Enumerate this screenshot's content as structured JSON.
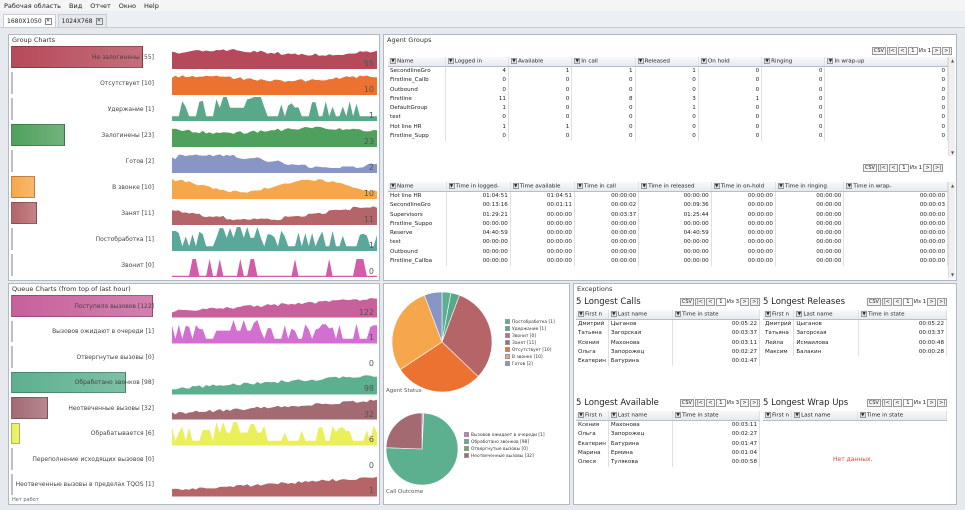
{
  "menu": [
    "Рабочая область",
    "Вид",
    "Отчет",
    "Окно",
    "Help"
  ],
  "tabs": [
    {
      "label": "1680X1050"
    },
    {
      "label": "1024X768"
    }
  ],
  "group_charts": {
    "title": "Group Charts",
    "rows": [
      {
        "label": "Не залогинены [55]",
        "value": "55",
        "color": "#b64a5a",
        "level": 0.93,
        "wave": "plateau"
      },
      {
        "label": "Отсутствует [10]",
        "value": "10",
        "color": "#ec7232",
        "level": 0.0,
        "wave": "plateau"
      },
      {
        "label": "Удержание [1]",
        "value": "1",
        "color": "#5aa88a",
        "level": 0.0,
        "wave": "spiky"
      },
      {
        "label": "Залогинены [23]",
        "value": "23",
        "color": "#4fa05c",
        "level": 0.38,
        "wave": "plateau"
      },
      {
        "label": "Готов [2]",
        "value": "2",
        "color": "#8796c4",
        "level": 0.0,
        "wave": "steps"
      },
      {
        "label": "В звонке [10]",
        "value": "10",
        "color": "#f6a74b",
        "level": 0.17,
        "wave": "wavy"
      },
      {
        "label": "Занят [11]",
        "value": "11",
        "color": "#b56468",
        "level": 0.18,
        "wave": "steps"
      },
      {
        "label": "Постобработка [1]",
        "value": "1",
        "color": "#5aa89a",
        "level": 0.0,
        "wave": "spiky"
      },
      {
        "label": "Звонит [0]",
        "value": "0",
        "color": "#d35ca6",
        "level": 0.0,
        "wave": "sparse"
      }
    ]
  },
  "queue_charts": {
    "title": "Queue Charts (from top of last hour)",
    "rows": [
      {
        "label": "Поступило вызовов [122]",
        "value": "122",
        "color": "#c8609b",
        "level": 1.0,
        "wave": "ramp"
      },
      {
        "label": "Вызовов ожидают в очереди [1]",
        "value": "1",
        "color": "#d36fd0",
        "level": 0.0,
        "wave": "spiky"
      },
      {
        "label": "Отвергнутые вызовы [0]",
        "value": "0",
        "color": "#6aa86d",
        "level": 0.0,
        "wave": "none"
      },
      {
        "label": "Обработано звонков [98]",
        "value": "98",
        "color": "#5db08f",
        "level": 0.81,
        "wave": "ramp"
      },
      {
        "label": "Неотвеченные вызовы [32]",
        "value": "32",
        "color": "#a36a72",
        "level": 0.26,
        "wave": "ramp"
      },
      {
        "label": "Обрабатывается [6]",
        "value": "6",
        "color": "#e9f05a",
        "level": 0.06,
        "wave": "spiky"
      },
      {
        "label": "Переполнение исходящих вызовов [0]",
        "value": "0",
        "color": "#6aa86d",
        "level": 0.0,
        "wave": "none"
      },
      {
        "label": "Неотвеченные вызовы в пределах TQOS [1]",
        "value": "1",
        "color": "#b56468",
        "level": 0.0,
        "wave": "ramp"
      }
    ],
    "footer": "Нет работ"
  },
  "agent_groups": {
    "title": "Agent Groups",
    "csv": "CSV",
    "pager": {
      "page": "1",
      "of": "Из 1"
    },
    "table1": {
      "columns": [
        "Name",
        "Logged in",
        "Available",
        "In call",
        "Released",
        "On hold",
        "Ringing",
        "In wrap-up"
      ],
      "rows": [
        [
          "SecondlineGro",
          "4",
          "1",
          "1",
          "1",
          "0",
          "0",
          "0"
        ],
        [
          "Firstline_Callb",
          "0",
          "0",
          "0",
          "0",
          "0",
          "0",
          "0"
        ],
        [
          "Outbound",
          "0",
          "0",
          "0",
          "0",
          "0",
          "0",
          "0"
        ],
        [
          "Firstline",
          "11",
          "0",
          "8",
          "3",
          "1",
          "0",
          "0"
        ],
        [
          "DefaultGroup",
          "1",
          "0",
          "0",
          "1",
          "0",
          "0",
          "0"
        ],
        [
          "test",
          "0",
          "0",
          "0",
          "0",
          "0",
          "0",
          "0"
        ],
        [
          "Hot line HR",
          "1",
          "1",
          "0",
          "0",
          "0",
          "0",
          "0"
        ],
        [
          "Firstline_Supp",
          "0",
          "0",
          "0",
          "0",
          "0",
          "0",
          "0"
        ]
      ]
    },
    "table2": {
      "columns": [
        "Name",
        "Time in logged-",
        "Time available",
        "Time in call",
        "Time in released",
        "Time in on-hold",
        "Time in ringing",
        "Time in wrap-"
      ],
      "rows": [
        [
          "Hot line HR",
          "01:04:51",
          "01:04:51",
          "00:00:00",
          "00:00:00",
          "00:00:00",
          "00:00:00",
          "00:00:00"
        ],
        [
          "SecondlineGro",
          "00:13:16",
          "00:01:11",
          "00:00:02",
          "00:09:36",
          "00:00:00",
          "00:00:00",
          "00:00:03"
        ],
        [
          "Supervisors",
          "01:29:21",
          "00:00:00",
          "00:03:37",
          "01:25:44",
          "00:00:00",
          "00:00:00",
          "00:00:00"
        ],
        [
          "Firstline_Suppo",
          "00:00:00",
          "00:00:00",
          "00:00:00",
          "00:00:00",
          "00:00:00",
          "00:00:00",
          "00:00:00"
        ],
        [
          "Reserve",
          "04:40:59",
          "00:00:00",
          "00:00:00",
          "04:40:59",
          "00:00:00",
          "00:00:00",
          "00:00:00"
        ],
        [
          "test",
          "00:00:00",
          "00:00:00",
          "00:00:00",
          "00:00:00",
          "00:00:00",
          "00:00:00",
          "00:00:00"
        ],
        [
          "Outbound",
          "00:00:00",
          "00:00:00",
          "00:00:00",
          "00:00:00",
          "00:00:00",
          "00:00:00",
          "00:00:00"
        ],
        [
          "Firstline_Callba",
          "00:00:00",
          "00:00:00",
          "00:00:00",
          "00:00:00",
          "00:00:00",
          "00:00:00",
          "00:00:00"
        ]
      ]
    }
  },
  "agent_status": {
    "label": "Agent Status",
    "slices": [
      {
        "label": "Постобработка [1]",
        "value": 1,
        "color": "#5db08f"
      },
      {
        "label": "Удержание [1]",
        "value": 1,
        "color": "#5aa88a"
      },
      {
        "label": "Звонит [0]",
        "value": 0,
        "color": "#d35ca6"
      },
      {
        "label": "Занят [11]",
        "value": 11,
        "color": "#b56468"
      },
      {
        "label": "Отсутствует [10]",
        "value": 10,
        "color": "#ec7232"
      },
      {
        "label": "В звонке [10]",
        "value": 10,
        "color": "#f6a74b"
      },
      {
        "label": "Готов [2]",
        "value": 2,
        "color": "#8796c4"
      }
    ]
  },
  "call_outcome": {
    "label": "Call Outcome",
    "slices": [
      {
        "label": "Вызовов ожидает в очереди [1]",
        "value": 1,
        "color": "#d36fd0"
      },
      {
        "label": "Обработано звонков [98]",
        "value": 98,
        "color": "#5db08f"
      },
      {
        "label": "Отвергнутые вызовы [0]",
        "value": 0,
        "color": "#6aa86d"
      },
      {
        "label": "Неотвеченные вызовы [32]",
        "value": 32,
        "color": "#a36a72"
      }
    ]
  },
  "exceptions": {
    "title": "Exceptions",
    "columns": [
      "First n",
      "Last name",
      "Time in state"
    ],
    "csv": "CSV",
    "page": "1",
    "of": "Из 1",
    "longest_calls": {
      "title": "5 Longest Calls",
      "of": "Из 3",
      "rows": [
        [
          "Дмитрий",
          "Цыганов",
          "00:05:22"
        ],
        [
          "Татьяна",
          "Загорская",
          "00:03:37"
        ],
        [
          "Ксения",
          "Махонова",
          "00:03:11"
        ],
        [
          "Ольга",
          "Запорожец",
          "00:02:27"
        ],
        [
          "Екатерин",
          "Батурина",
          "00:01:47"
        ]
      ]
    },
    "longest_releases": {
      "title": "5 Longest Releases",
      "rows": [
        [
          "Дмитрий",
          "Цыганов",
          "00:05:22"
        ],
        [
          "Татьяна",
          "Загорская",
          "00:03:37"
        ],
        [
          "Лейла",
          "Исмаилова",
          "00:00:48"
        ],
        [
          "Максим",
          "Балакин",
          "00:00:28"
        ]
      ]
    },
    "longest_available": {
      "title": "5 Longest Available",
      "of": "Из 3",
      "rows": [
        [
          "Ксения",
          "Махонова",
          "00:03:11"
        ],
        [
          "Ольга",
          "Запорожец",
          "00:02:27"
        ],
        [
          "Екатерин",
          "Батурина",
          "00:01:47"
        ],
        [
          "Марина",
          "Ермина",
          "00:01:04"
        ],
        [
          "Олеся",
          "Тулякова",
          "00:00:58"
        ]
      ]
    },
    "longest_wrapups": {
      "title": "5 Longest Wrap Ups",
      "no_data": "Нет данных."
    }
  }
}
